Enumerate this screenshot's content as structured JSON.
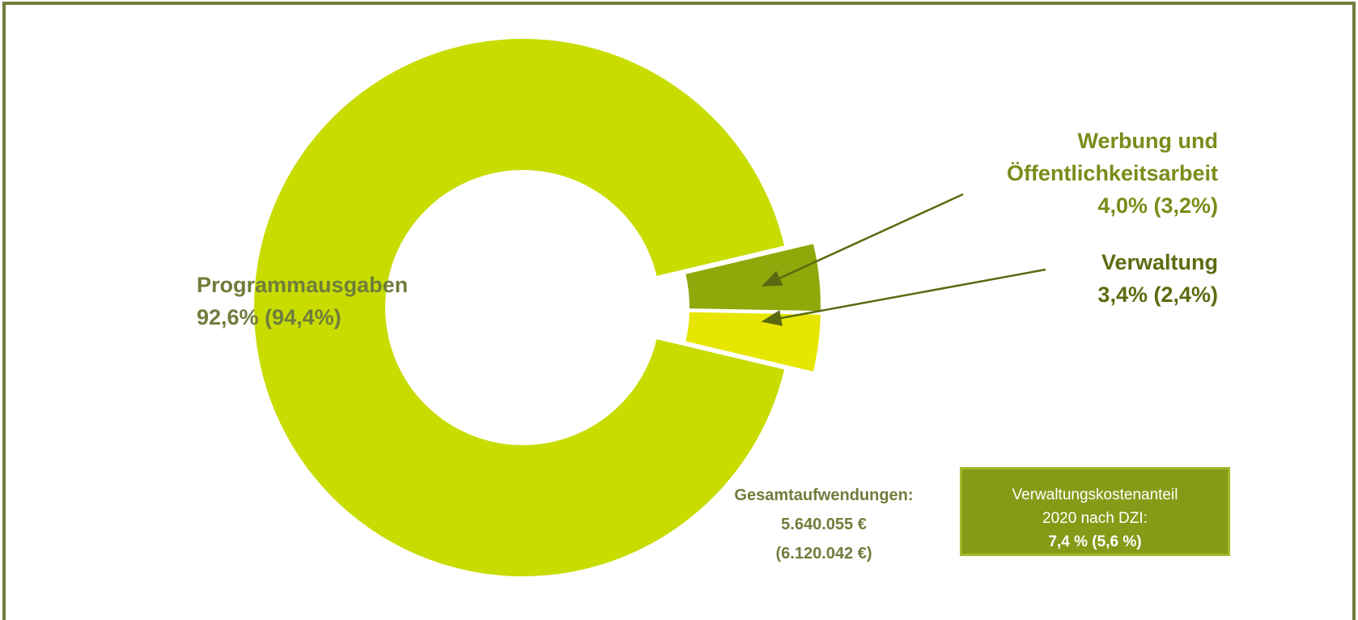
{
  "chart_data": {
    "type": "pie",
    "donut": true,
    "categories": [
      "Programmausgaben",
      "Werbung und Öffentlichkeitsarbeit",
      "Verwaltung"
    ],
    "values": [
      92.6,
      4.0,
      3.4
    ],
    "value_labels": [
      "92,6% (94,4%)",
      "4,0% (3,2%)",
      "3,4% (2,4%)"
    ],
    "colors": [
      "#c8dc00",
      "#8fa80a",
      "#e6e600"
    ],
    "annotations": [
      "Gesamtaufwendungen:",
      "5.640.055 €",
      "(6.120.042 €)"
    ],
    "info_box": [
      "Verwaltungskostenanteil",
      "2020 nach DZI:",
      "7,4 % (5,6 %)"
    ]
  }
}
